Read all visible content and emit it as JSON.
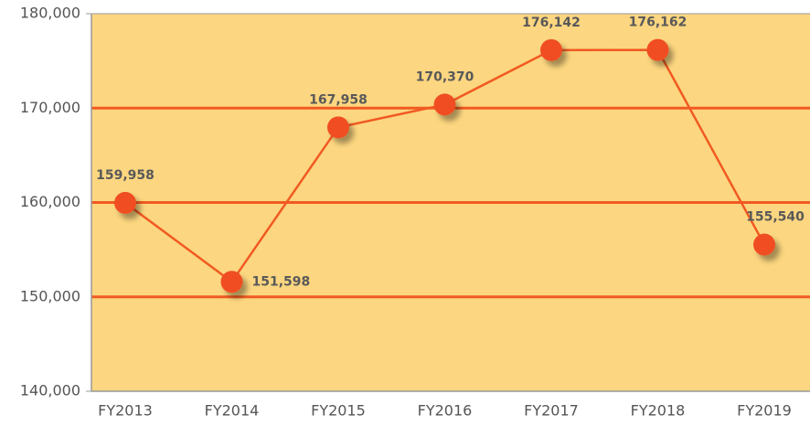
{
  "chart_data": {
    "type": "line",
    "categories": [
      "FY2013",
      "FY2014",
      "FY2015",
      "FY2016",
      "FY2017",
      "FY2018",
      "FY2019"
    ],
    "values": [
      159958,
      151598,
      167958,
      170370,
      176142,
      176162,
      155540
    ],
    "value_labels": [
      "159,958",
      "151,598",
      "167,958",
      "170,370",
      "176,142",
      "176,162",
      "155,540"
    ],
    "color": "#f15a22",
    "plot_background": "#fcd680",
    "grid_color": "#f15a22",
    "ylim": [
      140000,
      180000
    ],
    "yticks": [
      {
        "value": 140000,
        "label": "140,000"
      },
      {
        "value": 150000,
        "label": "150,000"
      },
      {
        "value": 160000,
        "label": "160,000"
      },
      {
        "value": 170000,
        "label": "170,000"
      },
      {
        "value": 180000,
        "label": "180,000"
      }
    ],
    "grid": true
  }
}
